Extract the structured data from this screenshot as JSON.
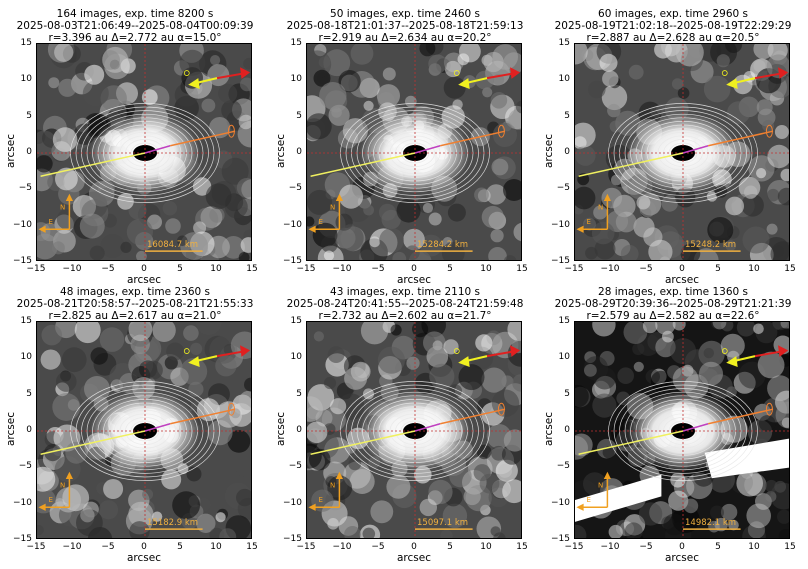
{
  "chart_data": [
    {
      "type": "heatmap",
      "title": "164 images, exp. time 8200 s",
      "subtitle_lines": [
        "2025-08-03T21:06:49--2025-08-04T00:09:39",
        "r=3.396 au Δ=2.772 au α=15.0°"
      ],
      "n_images": 164,
      "exp_time_s": 8200,
      "time_start": "2025-08-03T21:06:49",
      "time_end": "2025-08-04T00:09:39",
      "r_au": 3.396,
      "delta_au": 2.772,
      "alpha_deg": 15.0,
      "scale_bar": "16084.7 km",
      "xlabel": "arcsec",
      "ylabel": "arcsec",
      "xlim": [
        -15,
        15
      ],
      "ylim": [
        -15,
        15
      ],
      "xticks": [
        -15,
        -10,
        -5,
        0,
        5,
        10,
        15
      ],
      "yticks": [
        -15,
        -10,
        -5,
        0,
        5,
        10,
        15
      ],
      "compass": {
        "N": "N",
        "E": "E"
      }
    },
    {
      "type": "heatmap",
      "title": "50 images, exp. time 2460 s",
      "subtitle_lines": [
        "2025-08-18T21:01:37--2025-08-18T21:59:13",
        "r=2.919 au Δ=2.634 au α=20.2°"
      ],
      "n_images": 50,
      "exp_time_s": 2460,
      "time_start": "2025-08-18T21:01:37",
      "time_end": "2025-08-18T21:59:13",
      "r_au": 2.919,
      "delta_au": 2.634,
      "alpha_deg": 20.2,
      "scale_bar": "15284.2 km",
      "xlabel": "arcsec",
      "ylabel": "arcsec",
      "xlim": [
        -15,
        15
      ],
      "ylim": [
        -15,
        15
      ],
      "xticks": [
        -15,
        -10,
        -5,
        0,
        5,
        10,
        15
      ],
      "yticks": [
        -15,
        -10,
        -5,
        0,
        5,
        10,
        15
      ],
      "compass": {
        "N": "N",
        "E": "E"
      }
    },
    {
      "type": "heatmap",
      "title": "60 images, exp. time 2960 s",
      "subtitle_lines": [
        "2025-08-19T21:02:18--2025-08-19T22:29:29",
        "r=2.887 au Δ=2.628 au α=20.5°"
      ],
      "n_images": 60,
      "exp_time_s": 2960,
      "time_start": "2025-08-19T21:02:18",
      "time_end": "2025-08-19T22:29:29",
      "r_au": 2.887,
      "delta_au": 2.628,
      "alpha_deg": 20.5,
      "scale_bar": "15248.2 km",
      "xlabel": "arcsec",
      "ylabel": "arcsec",
      "xlim": [
        -15,
        15
      ],
      "ylim": [
        -15,
        15
      ],
      "xticks": [
        -15,
        -10,
        -5,
        0,
        5,
        10,
        15
      ],
      "yticks": [
        -15,
        -10,
        -5,
        0,
        5,
        10,
        15
      ],
      "compass": {
        "N": "N",
        "E": "E"
      }
    },
    {
      "type": "heatmap",
      "title": "48 images, exp. time 2360 s",
      "subtitle_lines": [
        "2025-08-21T20:58:57--2025-08-21T21:55:33",
        "r=2.825 au Δ=2.617 au α=21.0°"
      ],
      "n_images": 48,
      "exp_time_s": 2360,
      "time_start": "2025-08-21T20:58:57",
      "time_end": "2025-08-21T21:55:33",
      "r_au": 2.825,
      "delta_au": 2.617,
      "alpha_deg": 21.0,
      "scale_bar": "15182.9 km",
      "xlabel": "arcsec",
      "ylabel": "arcsec",
      "xlim": [
        -15,
        15
      ],
      "ylim": [
        -15,
        15
      ],
      "xticks": [
        -15,
        -10,
        -5,
        0,
        5,
        10,
        15
      ],
      "yticks": [
        -15,
        -10,
        -5,
        0,
        5,
        10,
        15
      ],
      "compass": {
        "N": "N",
        "E": "E"
      }
    },
    {
      "type": "heatmap",
      "title": "43 images, exp. time 2110 s",
      "subtitle_lines": [
        "2025-08-24T20:41:55--2025-08-24T21:59:48",
        "r=2.732 au Δ=2.602 au α=21.7°"
      ],
      "n_images": 43,
      "exp_time_s": 2110,
      "time_start": "2025-08-24T20:41:55",
      "time_end": "2025-08-24T21:59:48",
      "r_au": 2.732,
      "delta_au": 2.602,
      "alpha_deg": 21.7,
      "scale_bar": "15097.1 km",
      "xlabel": "arcsec",
      "ylabel": "arcsec",
      "xlim": [
        -15,
        15
      ],
      "ylim": [
        -15,
        15
      ],
      "xticks": [
        -15,
        -10,
        -5,
        0,
        5,
        10,
        15
      ],
      "yticks": [
        -15,
        -10,
        -5,
        0,
        5,
        10,
        15
      ],
      "compass": {
        "N": "N",
        "E": "E"
      }
    },
    {
      "type": "heatmap",
      "title": "28 images, exp. time 1360 s",
      "subtitle_lines": [
        "2025-08-29T20:39:36--2025-08-29T21:21:39",
        "r=2.579 au Δ=2.582 au α=22.6°"
      ],
      "n_images": 28,
      "exp_time_s": 1360,
      "time_start": "2025-08-29T20:39:36",
      "time_end": "2025-08-29T21:21:39",
      "r_au": 2.579,
      "delta_au": 2.582,
      "alpha_deg": 22.6,
      "scale_bar": "14982.1 km",
      "xlabel": "arcsec",
      "ylabel": "arcsec",
      "xlim": [
        -15,
        15
      ],
      "ylim": [
        -15,
        15
      ],
      "xticks": [
        -15,
        -10,
        -5,
        0,
        5,
        10,
        15
      ],
      "yticks": [
        -15,
        -10,
        -5,
        0,
        5,
        10,
        15
      ],
      "compass": {
        "N": "N",
        "E": "E"
      }
    }
  ],
  "colors": {
    "sun_arrow": "#e02020",
    "velocity_arrow": "#f0f020",
    "tail_line": "#f08030",
    "antivelocity_line": "#f0f060",
    "compass": "#f0a020",
    "scale_bar": "#f0b040",
    "crosshair": "#c03030",
    "contours": "#e0e0e0",
    "magenta_line": "#c040c0"
  }
}
